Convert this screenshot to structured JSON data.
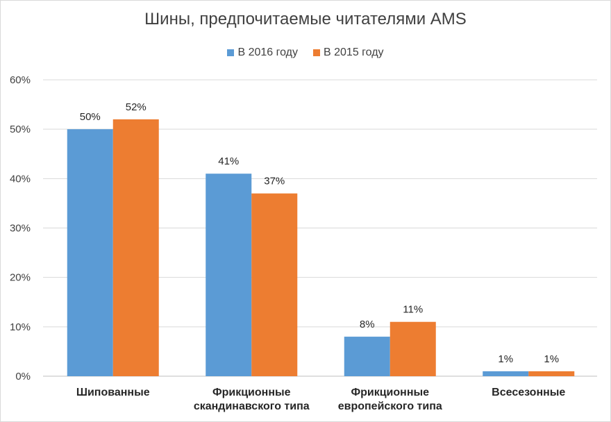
{
  "chart_data": {
    "type": "bar",
    "title": "Шины, предпочитаемые читателями AMS",
    "categories": [
      [
        "Шипованные"
      ],
      [
        "Фрикционные",
        "скандинавского типа"
      ],
      [
        "Фрикционные",
        "европейского типа"
      ],
      [
        "Всесезонные"
      ]
    ],
    "series": [
      {
        "name": "В 2016 году",
        "color": "#5b9bd5",
        "values": [
          50,
          41,
          8,
          1
        ]
      },
      {
        "name": "В 2015 году",
        "color": "#ed7d31",
        "values": [
          52,
          37,
          11,
          1
        ]
      }
    ],
    "ylim": [
      0,
      60
    ],
    "yticks": [
      0,
      10,
      20,
      30,
      40,
      50,
      60
    ],
    "tick_suffix": "%",
    "data_label_suffix": "%",
    "grid": true,
    "legend_position": "top"
  }
}
